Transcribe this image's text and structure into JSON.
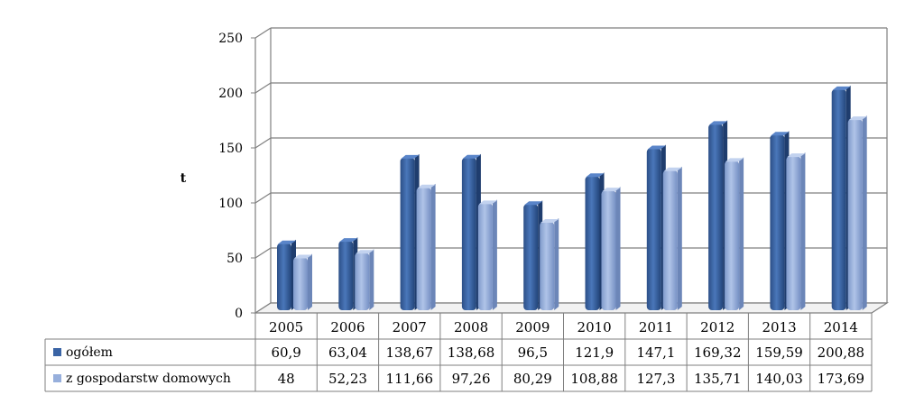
{
  "chart_data": {
    "type": "bar",
    "title": "",
    "ylabel": "t",
    "xlabel": "",
    "ylim": [
      0,
      250
    ],
    "yticks": [
      0,
      50,
      100,
      150,
      200,
      250
    ],
    "categories": [
      "2005",
      "2006",
      "2007",
      "2008",
      "2009",
      "2010",
      "2011",
      "2012",
      "2013",
      "2014"
    ],
    "series": [
      {
        "name": "ogółem",
        "color": "#3a64a5",
        "values": [
          60.9,
          63.04,
          138.67,
          138.68,
          96.5,
          121.9,
          147.1,
          169.32,
          159.59,
          200.88
        ],
        "labels": [
          "60,9",
          "63,04",
          "138,67",
          "138,68",
          "96,5",
          "121,9",
          "147,1",
          "169,32",
          "159,59",
          "200,88"
        ]
      },
      {
        "name": "z gospodarstw domowych",
        "color": "#97afdc",
        "values": [
          48,
          52.23,
          111.66,
          97.26,
          80.29,
          108.88,
          127.3,
          135.71,
          140.03,
          173.69
        ],
        "labels": [
          "48",
          "52,23",
          "111,66",
          "97,26",
          "80,29",
          "108,88",
          "127,3",
          "135,71",
          "140,03",
          "173,69"
        ]
      }
    ],
    "grid": true,
    "legend": "data-table"
  }
}
